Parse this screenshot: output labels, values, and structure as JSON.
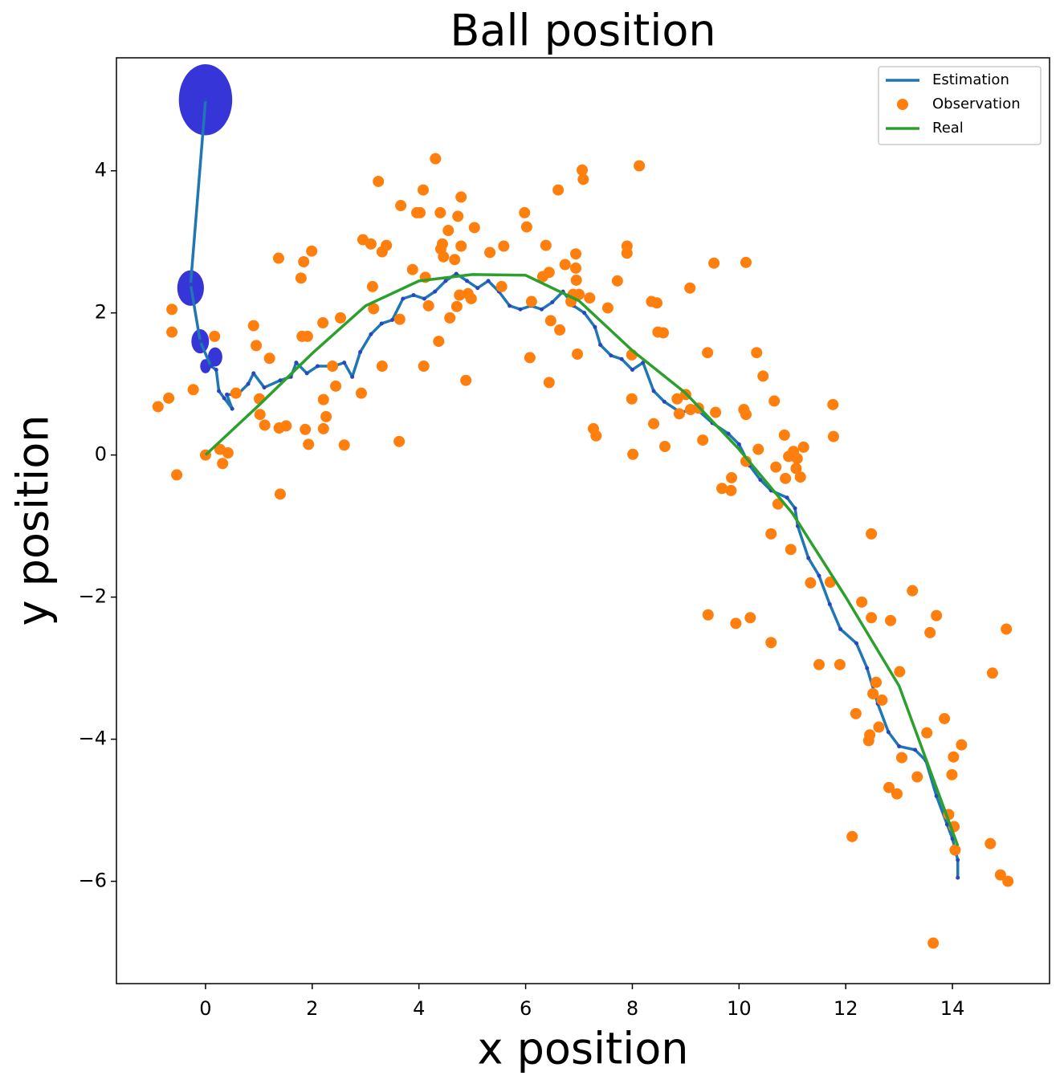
{
  "chart_data": {
    "type": "scatter",
    "title": "Ball position",
    "x_label": "x position",
    "y_label": "y position",
    "xlim": [
      -1.67,
      15.82
    ],
    "ylim": [
      -7.44,
      5.59
    ],
    "xticks": [
      0,
      2,
      4,
      6,
      8,
      10,
      12,
      14
    ],
    "yticks": [
      {
        "value": -6,
        "label": "−6"
      },
      {
        "value": -4,
        "label": "−4"
      },
      {
        "value": -2,
        "label": "−2"
      },
      0,
      2,
      4
    ],
    "legend": "upper right",
    "ellipses": {
      "color": "#3535d8",
      "x": [
        0,
        -0.28,
        -0.1,
        0.18,
        0
      ],
      "y": [
        5,
        2.35,
        1.6,
        1.38,
        1.25
      ],
      "width": [
        1.0,
        0.5,
        0.33,
        0.27,
        0.2
      ],
      "height": [
        1.0,
        0.5,
        0.34,
        0.27,
        0.2
      ]
    },
    "series": [
      {
        "name": "Estimation",
        "style": "line",
        "color": "#1f77b4",
        "marker_color": "#2b45c0",
        "x": [
          0,
          -0.28,
          -0.1,
          0.1,
          0.2,
          0.25,
          0.35,
          0.5,
          0.4,
          0.6,
          0.8,
          0.9,
          1.1,
          1.4,
          1.6,
          1.7,
          1.9,
          2.1,
          2.4,
          2.6,
          2.75,
          2.9,
          3.1,
          3.3,
          3.5,
          3.7,
          3.9,
          4.1,
          4.3,
          4.5,
          4.7,
          4.9,
          5.1,
          5.3,
          5.5,
          5.7,
          5.9,
          6.1,
          6.3,
          6.5,
          6.7,
          6.9,
          7.1,
          7.3,
          7.4,
          7.6,
          7.8,
          8.0,
          8.2,
          8.4,
          8.6,
          8.9,
          9.2,
          9.5,
          9.8,
          10.0,
          10.2,
          10.4,
          10.6,
          10.9,
          11.05,
          11.1,
          11.3,
          11.5,
          11.7,
          11.9,
          12.2,
          12.4,
          12.6,
          12.8,
          13.0,
          13.3,
          13.5,
          13.7,
          13.9,
          14.0,
          14.1,
          14.1
        ],
        "y": [
          5,
          2.4,
          1.6,
          1.25,
          1.2,
          0.9,
          0.8,
          0.65,
          0.85,
          0.85,
          1.0,
          1.15,
          0.95,
          1.05,
          1.1,
          1.3,
          1.15,
          1.25,
          1.25,
          1.3,
          1.1,
          1.45,
          1.7,
          1.85,
          1.9,
          2.2,
          2.25,
          2.2,
          2.3,
          2.45,
          2.55,
          2.45,
          2.35,
          2.45,
          2.3,
          2.1,
          2.05,
          2.1,
          2.05,
          2.15,
          2.3,
          2.1,
          2.0,
          1.8,
          1.55,
          1.4,
          1.35,
          1.2,
          1.3,
          0.9,
          0.75,
          0.6,
          0.65,
          0.45,
          0.3,
          0.15,
          -0.15,
          -0.35,
          -0.5,
          -0.6,
          -0.75,
          -1.0,
          -1.45,
          -1.7,
          -2.1,
          -2.45,
          -2.65,
          -3.0,
          -3.5,
          -3.9,
          -4.1,
          -4.15,
          -4.3,
          -4.8,
          -5.2,
          -5.4,
          -5.7,
          -5.95
        ]
      },
      {
        "name": "Observation",
        "style": "marker",
        "color": "#ff7f0e",
        "x": [
          -0.89,
          -0.69,
          -0.63,
          -0.63,
          -0.54,
          -0.23,
          0,
          0.17,
          0.27,
          0.32,
          0.42,
          0.57,
          0.9,
          0.95,
          1.01,
          1.02,
          1.11,
          1.2,
          1.37,
          1.38,
          1.4,
          1.51,
          1.79,
          1.81,
          1.84,
          1.87,
          1.91,
          1.93,
          1.99,
          2.2,
          2.21,
          2.21,
          2.26,
          2.38,
          2.44,
          2.53,
          2.6,
          2.92,
          2.95,
          3.1,
          3.13,
          3.15,
          3.24,
          3.31,
          3.31,
          3.39,
          3.63,
          3.64,
          3.66,
          3.88,
          3.96,
          4.02,
          4.08,
          4.09,
          4.12,
          4.18,
          4.31,
          4.37,
          4.4,
          4.41,
          4.44,
          4.46,
          4.55,
          4.58,
          4.67,
          4.71,
          4.73,
          4.76,
          4.79,
          4.79,
          4.88,
          4.92,
          4.98,
          5.04,
          5.33,
          5.55,
          5.59,
          5.98,
          6.02,
          6.08,
          6.11,
          6.38,
          6.32,
          6.44,
          6.44,
          6.47,
          6.61,
          6.64,
          6.74,
          6.85,
          6.89,
          6.94,
          6.94,
          6.95,
          6.97,
          7.0,
          7.06,
          7.08,
          7.2,
          7.27,
          7.32,
          7.54,
          7.72,
          7.9,
          7.9,
          7.99,
          7.99,
          8.01,
          8.13,
          8.36,
          8.4,
          8.46,
          8.48,
          8.58,
          8.61,
          8.84,
          8.88,
          9.0,
          9.08,
          9.09,
          9.24,
          9.32,
          9.41,
          9.53,
          9.56,
          9.68,
          9.85,
          9.86,
          9.94,
          9.42,
          10.21,
          10.13,
          10.09,
          10.13,
          10.13,
          10.33,
          10.36,
          10.45,
          10.6,
          10.6,
          10.66,
          10.69,
          10.73,
          10.85,
          10.87,
          10.93,
          10.97,
          11.02,
          11.07,
          11.09,
          11.15,
          11.21,
          11.34,
          11.5,
          11.71,
          11.76,
          11.77,
          11.89,
          12.12,
          12.19,
          12.3,
          12.43,
          12.45,
          12.48,
          12.48,
          12.51,
          12.57,
          12.62,
          12.68,
          12.81,
          12.84,
          12.96,
          13.01,
          13.05,
          13.25,
          13.34,
          13.52,
          13.58,
          13.64,
          13.7,
          13.85,
          13.93,
          13.99,
          14.02,
          14.03,
          14.05,
          14.17,
          14.71,
          14.75,
          14.9,
          15.01,
          15.04
        ],
        "y": [
          0.68,
          0.8,
          2.05,
          1.73,
          -0.28,
          0.92,
          0,
          1.67,
          0.08,
          -0.12,
          0.03,
          0.87,
          1.82,
          1.54,
          0.79,
          0.57,
          0.42,
          1.36,
          2.77,
          0.38,
          -0.55,
          0.41,
          2.49,
          1.67,
          2.72,
          0.36,
          1.67,
          0.15,
          2.87,
          1.86,
          0.78,
          0.37,
          0.54,
          1.25,
          0.97,
          1.93,
          0.14,
          0.87,
          3.03,
          2.97,
          2.37,
          2.06,
          3.85,
          2.86,
          1.25,
          2.95,
          0.19,
          1.91,
          3.51,
          2.61,
          3.41,
          3.41,
          3.73,
          1.25,
          2.5,
          2.1,
          4.17,
          1.6,
          3.41,
          2.9,
          2.97,
          2.79,
          3.16,
          1.93,
          2.75,
          2.09,
          3.36,
          2.25,
          3.63,
          2.94,
          1.05,
          2.27,
          2.2,
          3.2,
          2.85,
          2.37,
          2.94,
          3.41,
          3.21,
          1.37,
          2.16,
          2.95,
          2.51,
          2.57,
          1.02,
          1.89,
          3.73,
          1.76,
          2.68,
          2.16,
          2.26,
          2.83,
          2.63,
          2.46,
          1.42,
          2.26,
          4.01,
          3.88,
          2.21,
          0.37,
          0.27,
          2.07,
          2.45,
          2.94,
          2.84,
          1.41,
          0.79,
          0.01,
          4.07,
          2.16,
          0.44,
          2.14,
          1.73,
          1.72,
          0.12,
          0.79,
          0.58,
          0.85,
          2.35,
          0.64,
          0.66,
          0.21,
          1.44,
          2.7,
          0.6,
          -0.47,
          -0.5,
          -0.32,
          -2.37,
          -2.25,
          -2.29,
          -0.09,
          0.64,
          2.71,
          0.57,
          1.44,
          0.08,
          1.11,
          -1.11,
          -2.64,
          0.76,
          -0.17,
          -0.69,
          0.28,
          -0.33,
          -0.02,
          -1.33,
          0.05,
          -0.19,
          -0.05,
          -0.31,
          0.11,
          -1.8,
          -2.95,
          -1.79,
          0.71,
          0.26,
          -2.95,
          -5.37,
          -3.64,
          -2.07,
          -4.02,
          -3.94,
          -1.11,
          -2.29,
          -3.36,
          -3.2,
          -3.83,
          -3.45,
          -4.68,
          -2.33,
          -4.77,
          -3.05,
          -4.26,
          -1.91,
          -4.53,
          -3.91,
          -2.5,
          -6.87,
          -2.26,
          -3.71,
          -5.06,
          -4.5,
          -4.25,
          -5.23,
          -5.56,
          -4.08,
          -5.47,
          -3.07,
          -5.91,
          -2.45,
          -6.0
        ]
      },
      {
        "name": "Real",
        "style": "line",
        "color": "#2ca02c",
        "x": [
          0,
          1,
          2,
          3,
          4,
          5,
          6,
          7,
          8,
          9,
          10,
          11,
          12,
          13,
          14.1
        ],
        "y": [
          0,
          0.7,
          1.43,
          2.1,
          2.45,
          2.54,
          2.53,
          2.17,
          1.47,
          0.87,
          0.08,
          -0.82,
          -2.0,
          -3.25,
          -5.5
        ]
      }
    ]
  }
}
